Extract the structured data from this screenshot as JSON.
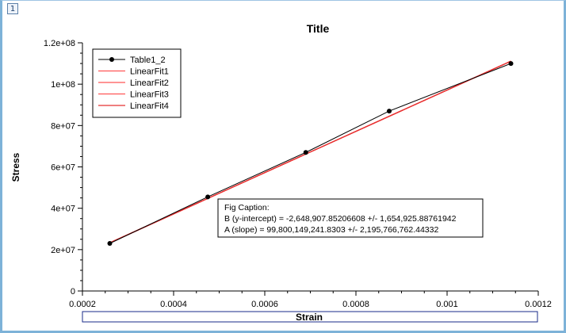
{
  "window": {
    "layer_badge": "1"
  },
  "chart_data": {
    "type": "line",
    "title": "Title",
    "xlabel": "Strain",
    "ylabel": "Stress",
    "xlim": [
      0.0002,
      0.0012
    ],
    "ylim": [
      0,
      120000000
    ],
    "x_ticks": [
      0.0002,
      0.0004,
      0.0006,
      0.0008,
      0.001,
      0.0012
    ],
    "x_tick_labels": [
      "0.0002",
      "0.0004",
      "0.0006",
      "0.0008",
      "0.001",
      "0.0012"
    ],
    "y_ticks": [
      0,
      20000000,
      40000000,
      60000000,
      80000000,
      100000000,
      120000000
    ],
    "y_tick_labels": [
      "0",
      "2e+07",
      "4e+07",
      "6e+07",
      "8e+07",
      "1e+08",
      "1.2e+08"
    ],
    "grid": false,
    "legend_position": "top-left",
    "series": [
      {
        "name": "Table1_2",
        "color": "#000000",
        "marker": "circle",
        "x": [
          0.00026,
          0.000475,
          0.00069,
          0.000873,
          0.00114
        ],
        "y": [
          23000000,
          45500000,
          67000000,
          87000000,
          110000000
        ]
      },
      {
        "name": "LinearFit1",
        "color": "#ff5555",
        "fit": true
      },
      {
        "name": "LinearFit2",
        "color": "#ff5555",
        "fit": true
      },
      {
        "name": "LinearFit3",
        "color": "#ff5555",
        "fit": true
      },
      {
        "name": "LinearFit4",
        "color": "#e53030",
        "fit": true
      }
    ],
    "fit": {
      "intercept": -2648907.85206608,
      "slope": 99800149241.8303,
      "x_range": [
        0.00026,
        0.00114
      ]
    },
    "caption": {
      "title": "Fig Caption:",
      "line_b": "B (y-intercept) = -2,648,907.85206608 +/- 1,654,925.88761942",
      "line_a": "A (slope) = 99,800,149,241.8303 +/- 2,195,766,762.44332"
    }
  }
}
